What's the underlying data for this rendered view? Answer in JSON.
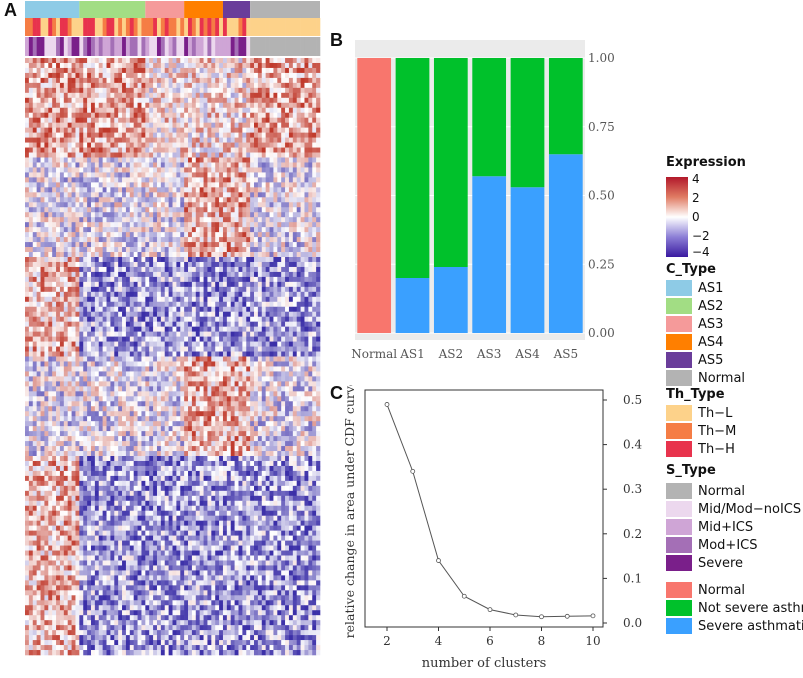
{
  "panels": {
    "a": "A",
    "b": "B",
    "c": "C"
  },
  "colors": {
    "heat_high": "#c0392b",
    "heat_low": "#3b2fa8",
    "heat_mid": "#ffffff",
    "bar_normal": "#f8766d",
    "bar_not_severe": "#00c12b",
    "bar_severe": "#3aa0ff"
  },
  "legends": {
    "expression": {
      "title": "Expression",
      "ticks": [
        "4",
        "2",
        "0",
        "−2",
        "−4"
      ]
    },
    "c_type": {
      "title": "C_Type",
      "items": [
        {
          "label": "AS1",
          "color": "#8ecbe6"
        },
        {
          "label": "AS2",
          "color": "#a2dd84"
        },
        {
          "label": "AS3",
          "color": "#f59a9a"
        },
        {
          "label": "AS4",
          "color": "#ff7f00"
        },
        {
          "label": "AS5",
          "color": "#6a3d9a"
        },
        {
          "label": "Normal",
          "color": "#b3b3b3"
        }
      ]
    },
    "th_type": {
      "title": "Th_Type",
      "items": [
        {
          "label": "Th−L",
          "color": "#fdd28a"
        },
        {
          "label": "Th−M",
          "color": "#f57d45"
        },
        {
          "label": "Th−H",
          "color": "#e8334d"
        }
      ]
    },
    "s_type": {
      "title": "S_Type",
      "items": [
        {
          "label": "Normal",
          "color": "#b3b3b3"
        },
        {
          "label": "Mid/Mod−noICS",
          "color": "#ecd8ee"
        },
        {
          "label": "Mid+ICS",
          "color": "#cfa5d6"
        },
        {
          "label": "Mod+ICS",
          "color": "#a46fb6"
        },
        {
          "label": "Severe",
          "color": "#7a1f8a"
        }
      ]
    },
    "outcome": {
      "items": [
        {
          "label": "Normal",
          "color": "#f8766d"
        },
        {
          "label": "Not severe asthmatic",
          "color": "#00c12b"
        },
        {
          "label": "Severe asthmatic",
          "color": "#3aa0ff"
        }
      ]
    }
  },
  "heatmap": {
    "groups": [
      "AS1",
      "AS2",
      "AS3",
      "AS4",
      "AS5",
      "Normal"
    ],
    "group_colors": [
      "#8ecbe6",
      "#a2dd84",
      "#f59a9a",
      "#ff7f00",
      "#6a3d9a",
      "#b3b3b3"
    ],
    "group_sample_counts": [
      14,
      17,
      10,
      10,
      7,
      18
    ],
    "gene_blocks": [
      "up",
      "mixed",
      "down",
      "mixed",
      "down",
      "down"
    ]
  },
  "chart_data": [
    {
      "type": "bar",
      "stacked": true,
      "categories": [
        "Normal",
        "AS1",
        "AS2",
        "AS3",
        "AS4",
        "AS5"
      ],
      "series": [
        {
          "name": "Normal",
          "values": [
            1.0,
            0,
            0,
            0,
            0,
            0
          ]
        },
        {
          "name": "Severe asthmatic",
          "values": [
            0,
            0.2,
            0.24,
            0.57,
            0.53,
            0.65
          ]
        },
        {
          "name": "Not severe asthmatic",
          "values": [
            0,
            0.8,
            0.76,
            0.43,
            0.47,
            0.35
          ]
        }
      ],
      "yticks": [
        "0.00",
        "0.25",
        "0.50",
        "0.75",
        "1.00"
      ],
      "ylim": [
        0,
        1
      ],
      "yaxis_side": "right",
      "title": "",
      "xlabel": "",
      "ylabel": ""
    },
    {
      "type": "line",
      "x": [
        2,
        3,
        4,
        5,
        6,
        7,
        8,
        9,
        10
      ],
      "y": [
        0.49,
        0.34,
        0.14,
        0.06,
        0.03,
        0.018,
        0.014,
        0.015,
        0.016
      ],
      "xticks": [
        "2",
        "4",
        "6",
        "8",
        "10"
      ],
      "yticks": [
        "0.0",
        "0.1",
        "0.2",
        "0.3",
        "0.4",
        "0.5"
      ],
      "xlim": [
        2,
        10
      ],
      "ylim": [
        0,
        0.5
      ],
      "yaxis_side": "right",
      "xlabel": "number of clusters",
      "ylabel": "relative change in area under CDF curve",
      "title": ""
    }
  ]
}
